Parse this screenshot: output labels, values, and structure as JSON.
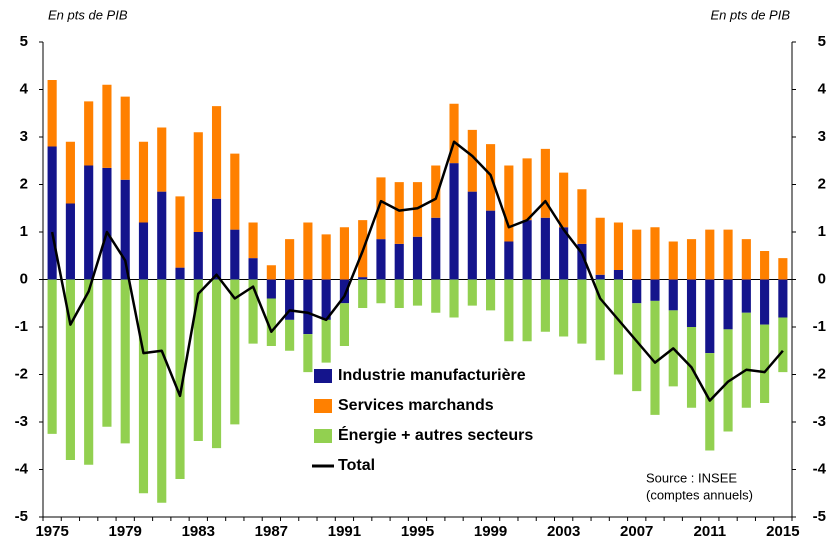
{
  "chart_data": {
    "type": "bar",
    "stacked": true,
    "y_label": "En pts de PIB",
    "y2_label": "En pts de PIB",
    "annotation": [
      "Source : INSEE",
      "(comptes annuels)"
    ],
    "categories": [
      "1975",
      null,
      null,
      null,
      "1979",
      null,
      null,
      null,
      "1983",
      null,
      null,
      null,
      "1987",
      null,
      null,
      null,
      "1991",
      null,
      null,
      null,
      "1995",
      null,
      null,
      null,
      "1999",
      null,
      null,
      null,
      "2003",
      null,
      null,
      null,
      "2007",
      null,
      null,
      null,
      "2011",
      null,
      null,
      null,
      "2015"
    ],
    "series": [
      {
        "name": "Industrie manufacturière",
        "color": "#14148c",
        "values": [
          2.8,
          1.6,
          2.4,
          2.35,
          2.1,
          1.2,
          1.85,
          0.25,
          1.0,
          1.7,
          1.05,
          0.45,
          -0.4,
          -0.85,
          -1.15,
          -0.85,
          -0.5,
          0.05,
          0.85,
          0.75,
          0.9,
          1.3,
          2.45,
          1.85,
          1.45,
          0.8,
          1.25,
          1.3,
          1.1,
          0.75,
          0.1,
          0.2,
          -0.5,
          -0.45,
          -0.65,
          -1.0,
          -1.55,
          -1.05,
          -0.7,
          -0.95,
          -0.8
        ]
      },
      {
        "name": "Services marchands",
        "color": "#ff8000",
        "values": [
          1.4,
          1.3,
          1.35,
          1.75,
          1.75,
          1.7,
          1.35,
          1.5,
          2.1,
          1.95,
          1.6,
          0.75,
          0.3,
          0.85,
          1.2,
          0.95,
          1.1,
          1.2,
          1.3,
          1.3,
          1.15,
          1.1,
          1.25,
          1.3,
          1.4,
          1.6,
          1.3,
          1.45,
          1.15,
          1.15,
          1.2,
          1.0,
          1.05,
          1.1,
          0.8,
          0.85,
          1.05,
          1.05,
          0.85,
          0.6,
          0.45
        ]
      },
      {
        "name": "Énergie + autres secteurs",
        "color": "#92d050",
        "values": [
          -3.25,
          -3.8,
          -3.9,
          -3.1,
          -3.45,
          -4.5,
          -4.7,
          -4.2,
          -3.4,
          -3.55,
          -3.05,
          -1.35,
          -1.0,
          -0.65,
          -0.8,
          -0.9,
          -0.9,
          -0.6,
          -0.5,
          -0.6,
          -0.55,
          -0.7,
          -0.8,
          -0.55,
          -0.65,
          -1.3,
          -1.3,
          -1.1,
          -1.2,
          -1.35,
          -1.7,
          -2.0,
          -1.85,
          -2.4,
          -1.6,
          -1.7,
          -2.05,
          -2.15,
          -2.0,
          -1.65,
          -1.15
        ]
      },
      {
        "name": "Total",
        "color": "#000000",
        "type": "line",
        "values": [
          1.0,
          -0.95,
          -0.25,
          1.0,
          0.4,
          -1.55,
          -1.5,
          -2.45,
          -0.3,
          0.1,
          -0.4,
          -0.15,
          -1.1,
          -0.65,
          -0.7,
          -0.85,
          -0.35,
          0.6,
          1.65,
          1.45,
          1.5,
          1.7,
          2.9,
          2.6,
          2.2,
          1.1,
          1.25,
          1.65,
          1.05,
          0.55,
          -0.4,
          -0.85,
          -1.3,
          -1.75,
          -1.45,
          -1.85,
          -2.55,
          -2.15,
          -1.9,
          -1.95,
          -1.5
        ]
      }
    ],
    "ylim": [
      -5,
      5
    ],
    "yticks": [
      -5,
      -4,
      -3,
      -2,
      -1,
      0,
      1,
      2,
      3,
      4,
      5
    ],
    "y2lim": [
      -5,
      5
    ],
    "y2ticks": [
      -5,
      -4,
      -3,
      -2,
      -1,
      0,
      1,
      2,
      3,
      4,
      5
    ],
    "grid": false
  }
}
